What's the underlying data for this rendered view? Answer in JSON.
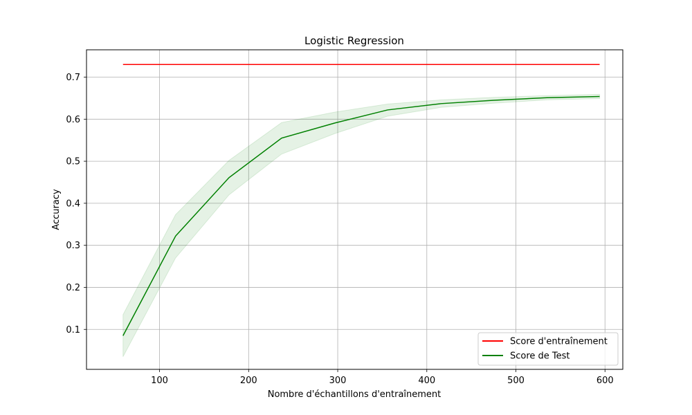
{
  "chart_data": {
    "type": "line",
    "title": "Logistic Regression",
    "xlabel": "Nombre d'échantillons d'entraînement",
    "ylabel": "Accuracy",
    "xlim": [
      18,
      620
    ],
    "ylim": [
      0.005,
      0.765
    ],
    "xticks": [
      100,
      200,
      300,
      400,
      500,
      600
    ],
    "yticks": [
      0.1,
      0.2,
      0.3,
      0.4,
      0.5,
      0.6,
      0.7
    ],
    "grid": true,
    "legend_position": "lower-right",
    "x": [
      59,
      118,
      178,
      237,
      297,
      356,
      416,
      475,
      535,
      594
    ],
    "series": [
      {
        "name": "Score d'entraînement",
        "color": "#ff0000",
        "values": [
          0.73,
          0.73,
          0.73,
          0.73,
          0.73,
          0.73,
          0.73,
          0.73,
          0.73,
          0.73
        ]
      },
      {
        "name": "Score de Test",
        "color": "#008000",
        "values": [
          0.085,
          0.322,
          0.461,
          0.555,
          0.591,
          0.622,
          0.637,
          0.645,
          0.651,
          0.654
        ],
        "band_lower": [
          0.035,
          0.27,
          0.42,
          0.517,
          0.566,
          0.607,
          0.628,
          0.638,
          0.646,
          0.649
        ],
        "band_upper": [
          0.135,
          0.373,
          0.502,
          0.592,
          0.617,
          0.636,
          0.646,
          0.652,
          0.656,
          0.659
        ],
        "band_color": "#008000"
      }
    ]
  }
}
